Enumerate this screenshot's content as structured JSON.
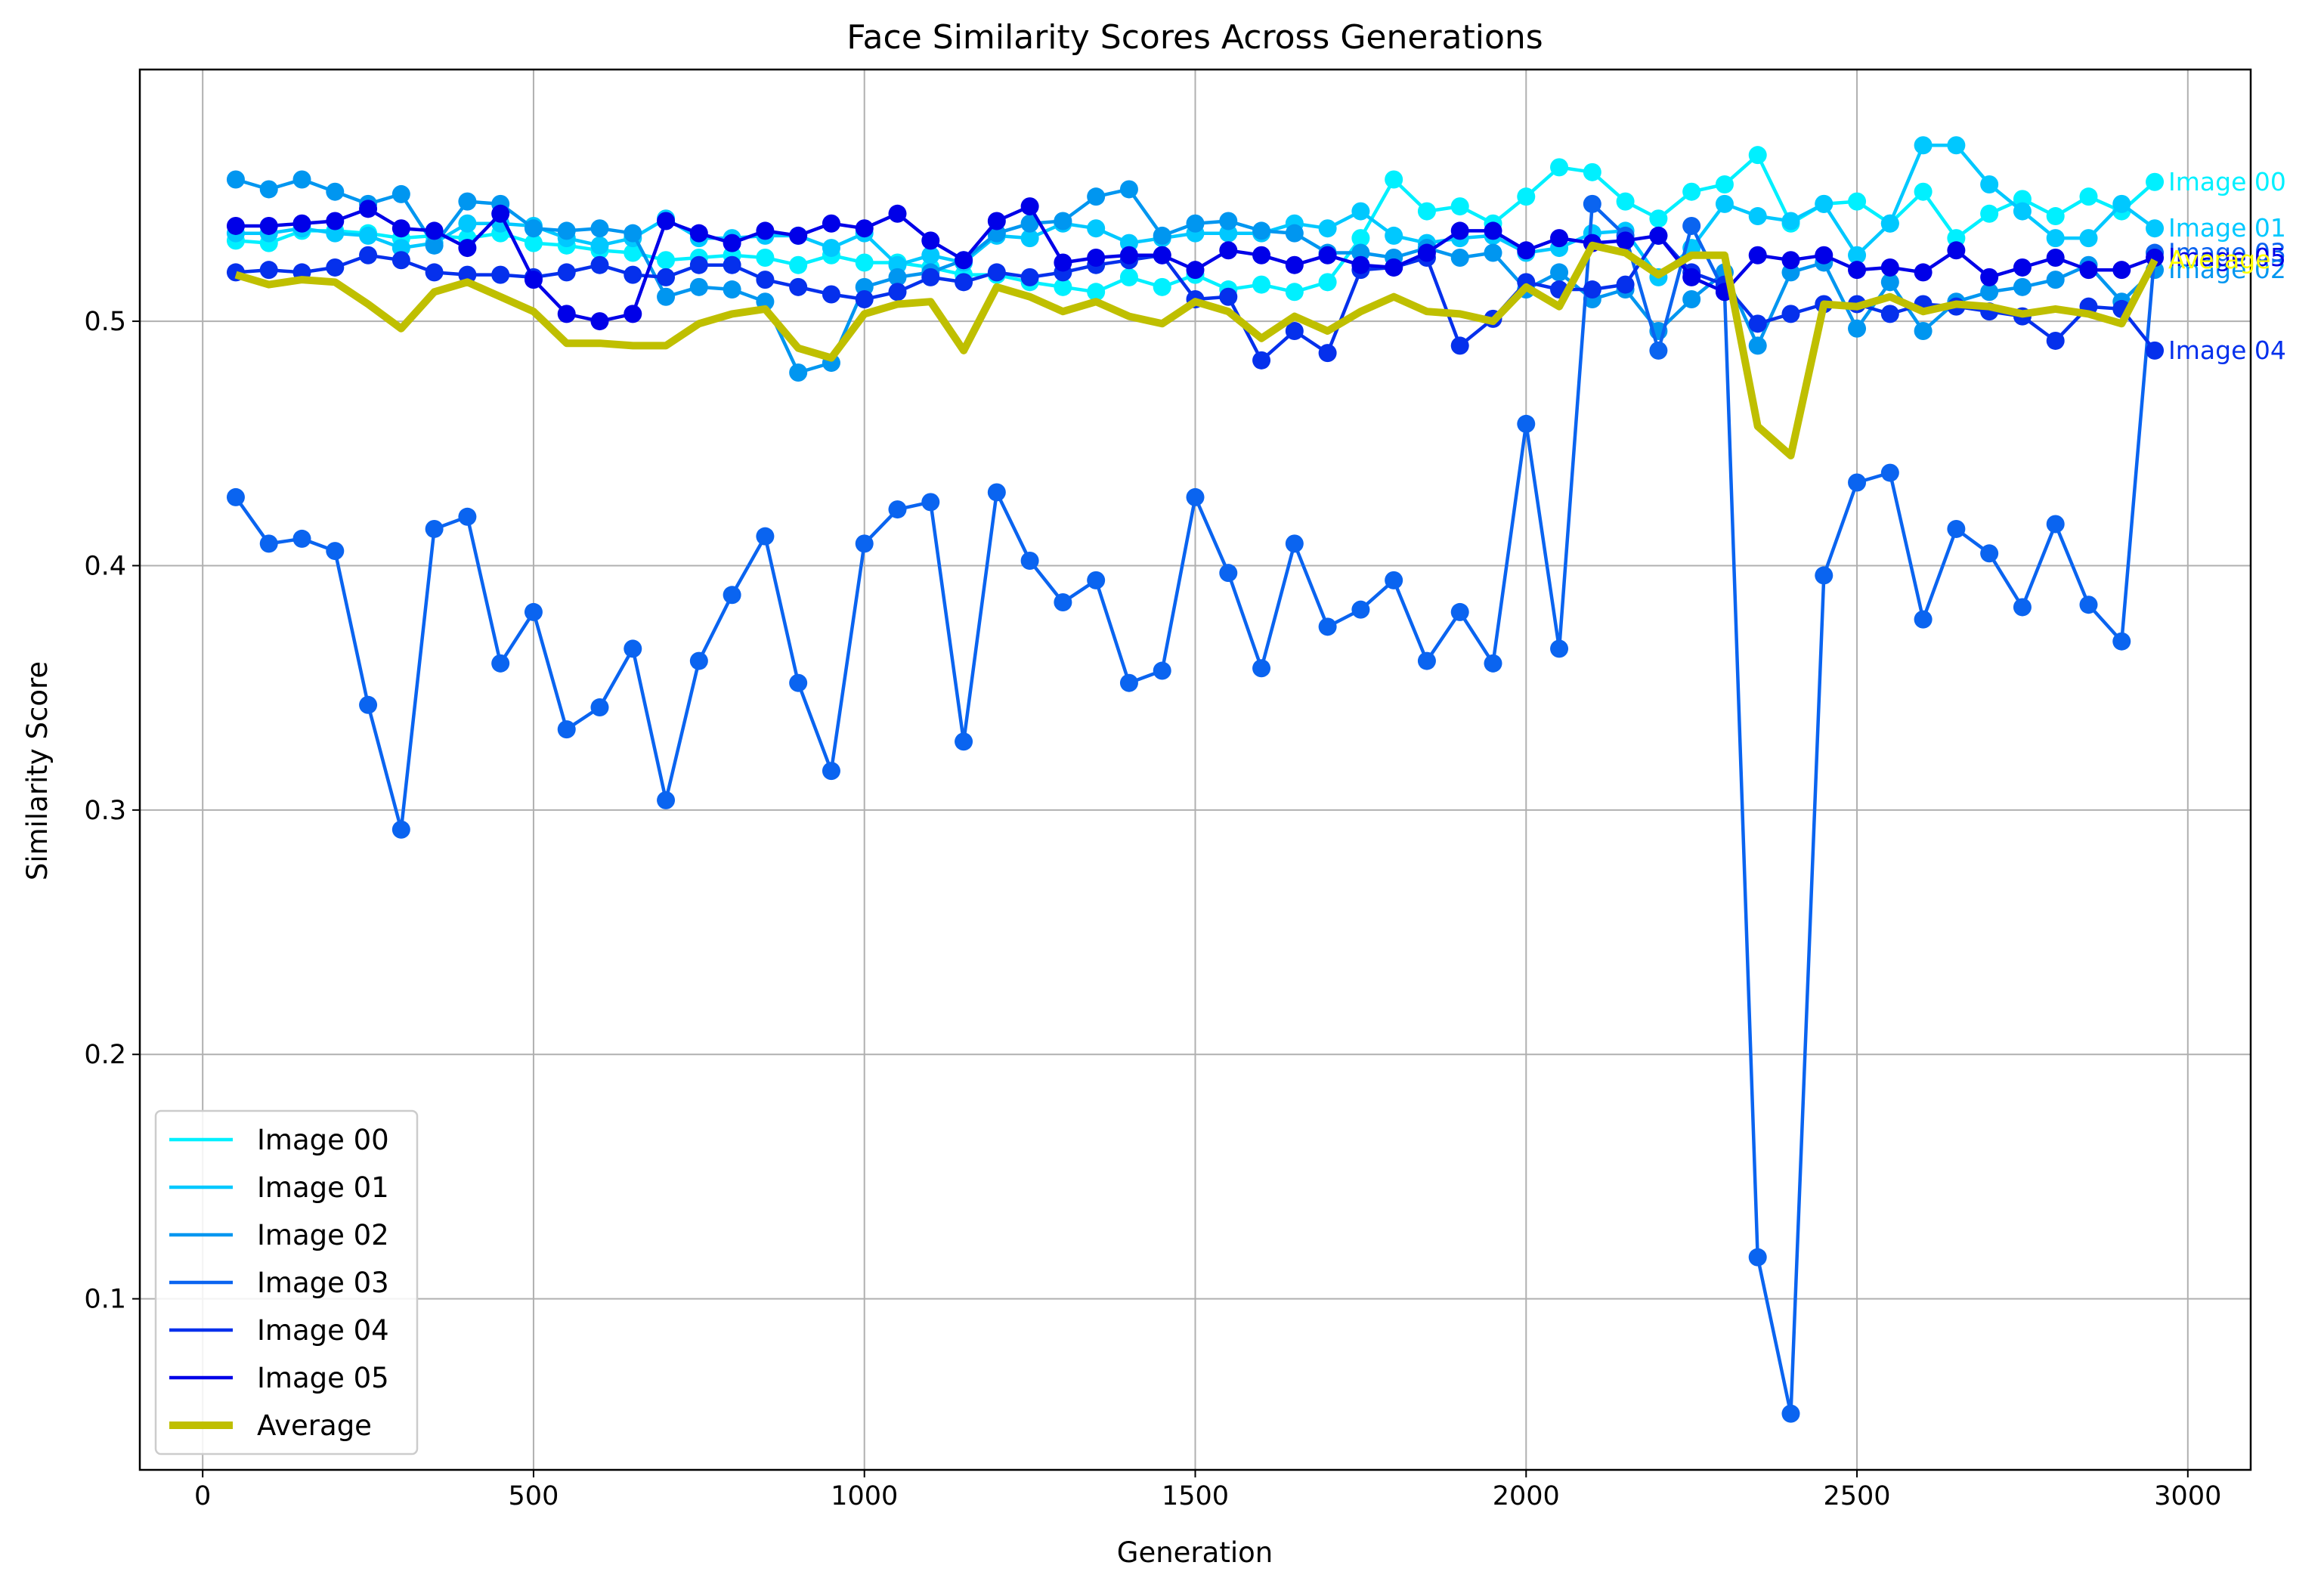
{
  "chart_data": {
    "type": "line",
    "title": "Face Similarity Scores Across Generations",
    "xlabel": "Generation",
    "ylabel": "Similarity Score",
    "xlim": [
      -95,
      3095
    ],
    "ylim": [
      0.03,
      0.603
    ],
    "xticks": [
      0,
      500,
      1000,
      1500,
      2000,
      2500,
      3000
    ],
    "yticks": [
      0.1,
      0.2,
      0.3,
      0.4,
      0.5
    ],
    "ytick_labels": [
      "0.1",
      "0.2",
      "0.3",
      "0.4",
      "0.5"
    ],
    "grid": true,
    "legend_position": "lower-left",
    "x": [
      50,
      100,
      150,
      200,
      250,
      300,
      350,
      400,
      450,
      500,
      550,
      600,
      650,
      700,
      750,
      800,
      850,
      900,
      950,
      1000,
      1050,
      1100,
      1150,
      1200,
      1250,
      1300,
      1350,
      1400,
      1450,
      1500,
      1550,
      1600,
      1650,
      1700,
      1750,
      1800,
      1850,
      1900,
      1950,
      2000,
      2050,
      2100,
      2150,
      2200,
      2250,
      2300,
      2350,
      2400,
      2450,
      2500,
      2550,
      2600,
      2650,
      2700,
      2750,
      2800,
      2850,
      2900,
      2950
    ],
    "series": [
      {
        "name": "Image 00",
        "color": "#00f0ff",
        "end_label": "Image 00",
        "values": [
          0.533,
          0.532,
          0.537,
          0.537,
          0.536,
          0.534,
          0.535,
          0.534,
          0.536,
          0.532,
          0.531,
          0.529,
          0.528,
          0.525,
          0.526,
          0.527,
          0.526,
          0.523,
          0.527,
          0.524,
          0.524,
          0.522,
          0.519,
          0.519,
          0.516,
          0.514,
          0.512,
          0.518,
          0.514,
          0.519,
          0.513,
          0.515,
          0.512,
          0.516,
          0.534,
          0.558,
          0.545,
          0.547,
          0.54,
          0.551,
          0.563,
          0.561,
          0.549,
          0.542,
          0.553,
          0.556,
          0.568,
          0.54,
          0.548,
          0.549,
          0.54,
          0.553,
          0.534,
          0.544,
          0.55,
          0.543,
          0.551,
          0.545,
          0.557
        ]
      },
      {
        "name": "Image 01",
        "color": "#00c8ff",
        "end_label": "Image 01",
        "values": [
          0.536,
          0.536,
          0.538,
          0.536,
          0.535,
          0.53,
          0.532,
          0.54,
          0.54,
          0.539,
          0.534,
          0.531,
          0.534,
          0.542,
          0.534,
          0.534,
          0.535,
          0.535,
          0.53,
          0.536,
          0.523,
          0.527,
          0.524,
          0.535,
          0.534,
          0.54,
          0.538,
          0.532,
          0.534,
          0.536,
          0.536,
          0.536,
          0.54,
          0.538,
          0.545,
          0.535,
          0.532,
          0.534,
          0.535,
          0.528,
          0.53,
          0.536,
          0.537,
          0.518,
          0.53,
          0.548,
          0.543,
          0.541,
          0.548,
          0.527,
          0.54,
          0.572,
          0.572,
          0.556,
          0.545,
          0.534,
          0.534,
          0.548,
          0.538
        ]
      },
      {
        "name": "Image 02",
        "color": "#0096f0",
        "end_label": "Image 02",
        "values": [
          0.558,
          0.554,
          0.558,
          0.553,
          0.548,
          0.552,
          0.531,
          0.549,
          0.548,
          0.538,
          0.537,
          0.538,
          0.536,
          0.51,
          0.514,
          0.513,
          0.508,
          0.479,
          0.483,
          0.514,
          0.518,
          0.52,
          0.525,
          0.536,
          0.54,
          0.541,
          0.551,
          0.554,
          0.535,
          0.54,
          0.541,
          0.537,
          0.536,
          0.528,
          0.528,
          0.526,
          0.53,
          0.526,
          0.528,
          0.513,
          0.52,
          0.509,
          0.513,
          0.496,
          0.509,
          0.52,
          0.49,
          0.52,
          0.524,
          0.497,
          0.516,
          0.496,
          0.508,
          0.512,
          0.514,
          0.517,
          0.523,
          0.508,
          0.521
        ]
      },
      {
        "name": "Image 03",
        "color": "#0a64f0",
        "end_label": "Image 03",
        "values": [
          0.428,
          0.409,
          0.411,
          0.406,
          0.343,
          0.292,
          0.415,
          0.42,
          0.36,
          0.381,
          0.333,
          0.342,
          0.366,
          0.304,
          0.361,
          0.388,
          0.412,
          0.352,
          0.316,
          0.409,
          0.423,
          0.426,
          0.328,
          0.43,
          0.402,
          0.385,
          0.394,
          0.352,
          0.357,
          0.428,
          0.397,
          0.358,
          0.409,
          0.375,
          0.382,
          0.394,
          0.361,
          0.381,
          0.36,
          0.458,
          0.366,
          0.548,
          0.535,
          0.488,
          0.539,
          0.512,
          0.117,
          0.053,
          0.396,
          0.434,
          0.438,
          0.378,
          0.415,
          0.405,
          0.383,
          0.417,
          0.384,
          0.369,
          0.528
        ]
      },
      {
        "name": "Image 04",
        "color": "#0530ec",
        "end_label": "Image 04",
        "values": [
          0.52,
          0.521,
          0.52,
          0.522,
          0.527,
          0.525,
          0.52,
          0.519,
          0.519,
          0.518,
          0.52,
          0.523,
          0.519,
          0.518,
          0.523,
          0.523,
          0.517,
          0.514,
          0.511,
          0.509,
          0.512,
          0.518,
          0.516,
          0.52,
          0.518,
          0.52,
          0.523,
          0.525,
          0.527,
          0.509,
          0.51,
          0.484,
          0.496,
          0.487,
          0.521,
          0.522,
          0.526,
          0.49,
          0.501,
          0.516,
          0.513,
          0.513,
          0.515,
          0.535,
          0.52,
          0.515,
          0.499,
          0.503,
          0.507,
          0.507,
          0.503,
          0.507,
          0.506,
          0.504,
          0.502,
          0.492,
          0.506,
          0.505,
          0.488
        ]
      },
      {
        "name": "Image 05",
        "color": "#0000e8",
        "end_label": "Image 05",
        "values": [
          0.539,
          0.539,
          0.54,
          0.541,
          0.546,
          0.538,
          0.537,
          0.53,
          0.544,
          0.517,
          0.503,
          0.5,
          0.503,
          0.541,
          0.536,
          0.532,
          0.537,
          0.535,
          0.54,
          0.538,
          0.544,
          0.533,
          0.525,
          0.541,
          0.547,
          0.524,
          0.526,
          0.527,
          0.527,
          0.521,
          0.529,
          0.527,
          0.523,
          0.527,
          0.523,
          0.522,
          0.528,
          0.537,
          0.537,
          0.529,
          0.534,
          0.532,
          0.533,
          0.535,
          0.518,
          0.512,
          0.527,
          0.525,
          0.527,
          0.521,
          0.522,
          0.52,
          0.529,
          0.518,
          0.522,
          0.526,
          0.521,
          0.521,
          0.526
        ]
      },
      {
        "name": "Average",
        "color": "#bfbf00",
        "label_color": "#ffff00",
        "end_label": "Average",
        "markers": false,
        "linewidth": 10,
        "values": [
          0.519,
          0.515,
          0.517,
          0.516,
          0.507,
          0.497,
          0.512,
          0.516,
          0.51,
          0.504,
          0.491,
          0.491,
          0.49,
          0.49,
          0.499,
          0.503,
          0.505,
          0.489,
          0.485,
          0.503,
          0.507,
          0.508,
          0.488,
          0.514,
          0.51,
          0.504,
          0.508,
          0.502,
          0.499,
          0.508,
          0.504,
          0.493,
          0.502,
          0.496,
          0.504,
          0.51,
          0.504,
          0.503,
          0.5,
          0.514,
          0.506,
          0.531,
          0.528,
          0.519,
          0.527,
          0.527,
          0.457,
          0.445,
          0.507,
          0.506,
          0.51,
          0.504,
          0.507,
          0.506,
          0.503,
          0.505,
          0.503,
          0.499,
          0.525
        ]
      }
    ]
  }
}
